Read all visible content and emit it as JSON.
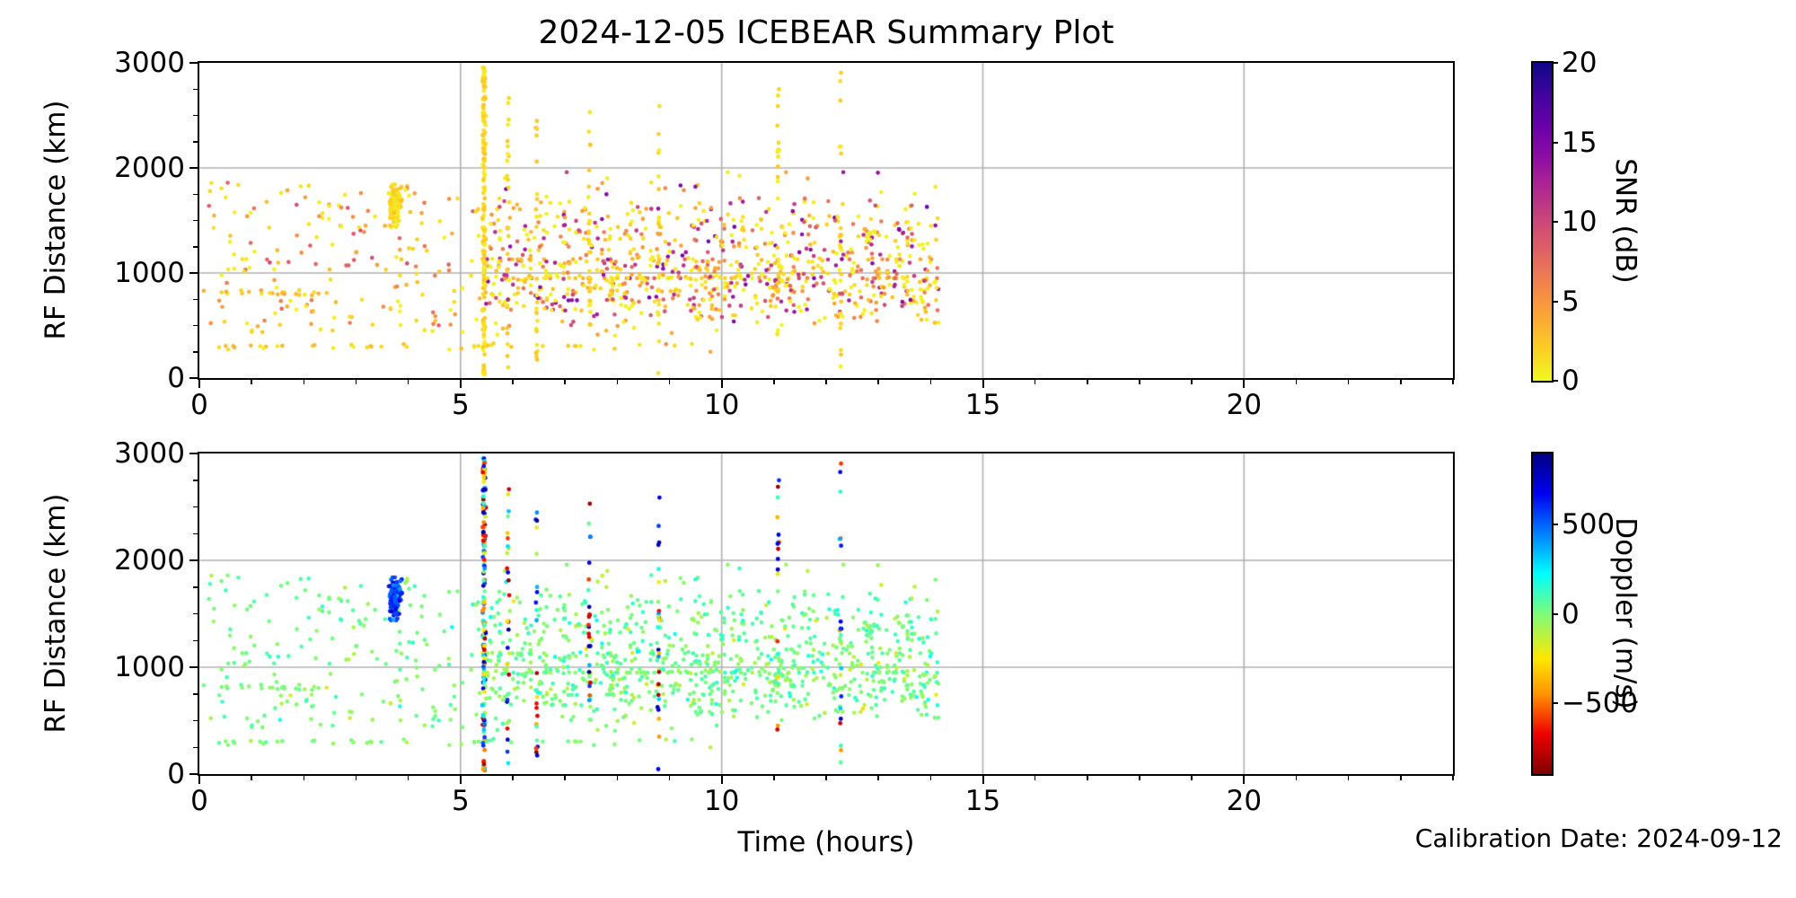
{
  "title": "2024-12-05 ICEBEAR Summary Plot",
  "calibration_text": "Calibration Date: 2024-09-12",
  "chart_data": {
    "type": "scatter",
    "description": "Two stacked scatter panels sharing the same radar echo points (time vs RF distance); top panel colored by SNR, bottom panel colored by Doppler velocity.",
    "xlabel": "Time (hours)",
    "xlim": [
      0,
      24
    ],
    "ylim": [
      0,
      3000
    ],
    "x_data_extent": [
      0.05,
      14.2
    ],
    "grid": true,
    "xticks": {
      "values": [
        0,
        5,
        10,
        15,
        20
      ],
      "labels": [
        "0",
        "5",
        "10",
        "15",
        "20"
      ],
      "minor_step": 1
    },
    "yticks": {
      "values": [
        0,
        1000,
        2000,
        3000
      ],
      "labels": [
        "0",
        "1000",
        "2000",
        "3000"
      ],
      "minor_step": 250
    },
    "panels": [
      {
        "id": "snr",
        "ylabel": "RF Distance (km)",
        "color_field": "snr",
        "colorbar": {
          "label": "SNR (dB)",
          "min": 0,
          "max": 20,
          "ticks": {
            "values": [
              0,
              5,
              10,
              15,
              20
            ],
            "labels": [
              "0",
              "5",
              "10",
              "15",
              "20"
            ]
          },
          "colormap": "plasma_r"
        }
      },
      {
        "id": "doppler",
        "ylabel": "RF Distance (km)",
        "color_field": "doppler",
        "colorbar": {
          "label": "Doppler (m/s)",
          "min": -900,
          "max": 900,
          "ticks": {
            "values": [
              500,
              0,
              -500
            ],
            "labels": [
              "500",
              "0",
              "−500"
            ]
          },
          "colormap": "jet_r"
        }
      }
    ],
    "colormaps": {
      "plasma_r": [
        [
          0,
          "#f0f921"
        ],
        [
          0.1,
          "#fcce25"
        ],
        [
          0.2,
          "#fca636"
        ],
        [
          0.3,
          "#f2844b"
        ],
        [
          0.4,
          "#e16462"
        ],
        [
          0.5,
          "#cc4778"
        ],
        [
          0.6,
          "#b12a90"
        ],
        [
          0.7,
          "#8f0da4"
        ],
        [
          0.8,
          "#6a00a8"
        ],
        [
          0.9,
          "#41049d"
        ],
        [
          1,
          "#0d0887"
        ]
      ],
      "jet_r": [
        [
          0,
          "#7f0000"
        ],
        [
          0.125,
          "#ef0000"
        ],
        [
          0.25,
          "#ff9400"
        ],
        [
          0.36,
          "#ffe600"
        ],
        [
          0.5,
          "#7dfc7a"
        ],
        [
          0.625,
          "#00ffff"
        ],
        [
          0.75,
          "#0080ff"
        ],
        [
          0.875,
          "#0000f0"
        ],
        [
          1,
          "#000080"
        ]
      ]
    },
    "points": {
      "seed": 1205,
      "clusters": [
        {
          "name": "echo-cloud-upper-band",
          "n": 480,
          "r": 2.3,
          "t": {
            "dist": "uniform",
            "min": 5.45,
            "max": 14.15
          },
          "rf": {
            "dist": "normal",
            "mean": 1300,
            "sd": 270,
            "min": 950,
            "max": 1960
          },
          "snr": {
            "dist": "power",
            "min": 0.3,
            "max": 16,
            "exp": 2.6
          },
          "doppler": {
            "dist": "normal",
            "mean": 30,
            "sd": 85,
            "min": -280,
            "max": 330
          }
        },
        {
          "name": "echo-cloud-lower-band",
          "n": 500,
          "r": 2.3,
          "t": {
            "dist": "uniform",
            "min": 5.45,
            "max": 14.15
          },
          "rf": {
            "dist": "normal",
            "mean": 840,
            "sd": 175,
            "min": 250,
            "max": 1130
          },
          "snr": {
            "dist": "power",
            "min": 0.3,
            "max": 16,
            "exp": 2.6
          },
          "doppler": {
            "dist": "normal",
            "mean": 10,
            "sd": 80,
            "min": -280,
            "max": 300
          }
        },
        {
          "name": "early-cloud-upper",
          "n": 115,
          "r": 2.3,
          "t": {
            "dist": "uniform",
            "min": 0.15,
            "max": 5.45
          },
          "rf": {
            "dist": "uniform",
            "min": 1000,
            "max": 1870
          },
          "snr": {
            "dist": "power",
            "min": 0.3,
            "max": 10,
            "exp": 2.4
          },
          "doppler": {
            "dist": "normal",
            "mean": 20,
            "sd": 70,
            "min": -220,
            "max": 260
          }
        },
        {
          "name": "early-cloud-lower",
          "n": 75,
          "r": 2.3,
          "t": {
            "dist": "uniform",
            "min": 0.15,
            "max": 5.45
          },
          "rf": {
            "dist": "uniform",
            "min": 430,
            "max": 1000
          },
          "snr": {
            "dist": "power",
            "min": 0.3,
            "max": 9,
            "exp": 2.4
          },
          "doppler": {
            "dist": "normal",
            "mean": 10,
            "sd": 70,
            "min": -220,
            "max": 260
          }
        },
        {
          "name": "row-300km",
          "n": 44,
          "r": 2.3,
          "t": {
            "dist": "uniform",
            "min": 0.3,
            "max": 9.6
          },
          "rf": {
            "dist": "normal",
            "mean": 300,
            "sd": 13,
            "min": 270,
            "max": 330
          },
          "snr": {
            "dist": "power",
            "min": 0.5,
            "max": 3.5,
            "exp": 1.4
          },
          "doppler": {
            "dist": "normal",
            "mean": 0,
            "sd": 45,
            "min": -120,
            "max": 120
          }
        },
        {
          "name": "row-800km-early",
          "n": 20,
          "r": 2.3,
          "t": {
            "dist": "uniform",
            "min": 0.05,
            "max": 2.3
          },
          "rf": {
            "dist": "normal",
            "mean": 810,
            "sd": 18,
            "min": 770,
            "max": 850
          },
          "snr": {
            "dist": "power",
            "min": 0.5,
            "max": 4,
            "exp": 1.4
          },
          "doppler": {
            "dist": "normal",
            "mean": 0,
            "sd": 45,
            "min": -120,
            "max": 120
          }
        },
        {
          "name": "dense-blob-3.7h",
          "n": 115,
          "r": 2.4,
          "t": {
            "dist": "normal",
            "mean": 3.74,
            "sd": 0.05,
            "min": 3.6,
            "max": 3.88
          },
          "rf": {
            "dist": "normal",
            "mean": 1640,
            "sd": 95,
            "min": 1440,
            "max": 1840
          },
          "snr": {
            "dist": "power",
            "min": 0.5,
            "max": 3,
            "exp": 1.2
          },
          "doppler": {
            "dist": "normal",
            "mean": 560,
            "sd": 95,
            "min": 300,
            "max": 780
          }
        },
        {
          "name": "dense-stripe-5.45h",
          "n": 155,
          "r": 2.4,
          "t": {
            "dist": "normal",
            "mean": 5.45,
            "sd": 0.013,
            "min": 5.41,
            "max": 5.49
          },
          "rf": {
            "dist": "uniform",
            "min": 20,
            "max": 2960
          },
          "snr": {
            "dist": "power",
            "min": 0.4,
            "max": 2.6,
            "exp": 1
          },
          "doppler": {
            "dist": "uniform",
            "min": -890,
            "max": 890
          }
        },
        {
          "name": "sparse-stripe-5.9h",
          "n": 26,
          "r": 2.4,
          "t": {
            "dist": "normal",
            "mean": 5.91,
            "sd": 0.01,
            "min": 5.88,
            "max": 5.94
          },
          "rf": {
            "dist": "uniform",
            "min": 40,
            "max": 2700
          },
          "snr": {
            "dist": "power",
            "min": 0.4,
            "max": 2.6,
            "exp": 1
          },
          "doppler": {
            "dist": "extreme",
            "inner": 450,
            "outer_min": 550,
            "outer_max": 880,
            "p_outer": 0.6
          }
        },
        {
          "name": "sparse-stripe-6.45h",
          "n": 22,
          "r": 2.4,
          "t": {
            "dist": "normal",
            "mean": 6.46,
            "sd": 0.01,
            "min": 6.43,
            "max": 6.49
          },
          "rf": {
            "dist": "uniform",
            "min": 40,
            "max": 2500
          },
          "snr": {
            "dist": "power",
            "min": 0.4,
            "max": 2.6,
            "exp": 1
          },
          "doppler": {
            "dist": "extreme",
            "inner": 450,
            "outer_min": 550,
            "outer_max": 880,
            "p_outer": 0.6
          }
        },
        {
          "name": "sparse-stripe-7.45h",
          "n": 26,
          "r": 2.4,
          "t": {
            "dist": "normal",
            "mean": 7.47,
            "sd": 0.01,
            "min": 7.44,
            "max": 7.5
          },
          "rf": {
            "dist": "uniform",
            "min": 60,
            "max": 2950
          },
          "snr": {
            "dist": "power",
            "min": 0.4,
            "max": 2.6,
            "exp": 1
          },
          "doppler": {
            "dist": "extreme",
            "inner": 450,
            "outer_min": 550,
            "outer_max": 880,
            "p_outer": 0.6
          }
        },
        {
          "name": "sparse-stripe-8.8h",
          "n": 24,
          "r": 2.4,
          "t": {
            "dist": "normal",
            "mean": 8.79,
            "sd": 0.01,
            "min": 8.76,
            "max": 8.82
          },
          "rf": {
            "dist": "uniform",
            "min": 40,
            "max": 2950
          },
          "snr": {
            "dist": "power",
            "min": 0.4,
            "max": 2.6,
            "exp": 1
          },
          "doppler": {
            "dist": "extreme",
            "inner": 450,
            "outer_min": 550,
            "outer_max": 880,
            "p_outer": 0.6
          }
        },
        {
          "name": "sparse-stripe-11.1h",
          "n": 20,
          "r": 2.4,
          "t": {
            "dist": "normal",
            "mean": 11.08,
            "sd": 0.01,
            "min": 11.05,
            "max": 11.11
          },
          "rf": {
            "dist": "uniform",
            "min": 150,
            "max": 2850
          },
          "snr": {
            "dist": "power",
            "min": 0.4,
            "max": 2.6,
            "exp": 1
          },
          "doppler": {
            "dist": "extreme",
            "inner": 450,
            "outer_min": 550,
            "outer_max": 880,
            "p_outer": 0.6
          }
        },
        {
          "name": "sparse-stripe-12.3h",
          "n": 22,
          "r": 2.4,
          "t": {
            "dist": "normal",
            "mean": 12.28,
            "sd": 0.01,
            "min": 12.25,
            "max": 12.31
          },
          "rf": {
            "dist": "uniform",
            "min": 100,
            "max": 2950
          },
          "snr": {
            "dist": "power",
            "min": 0.4,
            "max": 2.6,
            "exp": 1
          },
          "doppler": {
            "dist": "extreme",
            "inner": 450,
            "outer_min": 550,
            "outer_max": 880,
            "p_outer": 0.6
          }
        }
      ]
    }
  }
}
